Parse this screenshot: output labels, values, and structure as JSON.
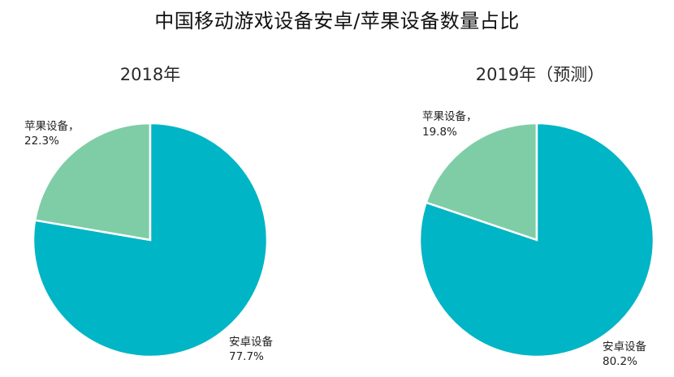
{
  "title": "中国移动游戏设备安卓/苹果设备数量占比",
  "colors": {
    "android": "#00B5C5",
    "apple": "#7FCDA6",
    "divider": "#ffffff"
  },
  "chart_data": [
    {
      "type": "pie",
      "title": "2018年",
      "slices": [
        {
          "name": "苹果设备",
          "value": 22.3,
          "label": "22.3%"
        },
        {
          "name": "安卓设备",
          "value": 77.7,
          "label": "77.7%"
        }
      ]
    },
    {
      "type": "pie",
      "title": "2019年（预测）",
      "slices": [
        {
          "name": "苹果设备",
          "value": 19.8,
          "label": "19.8%"
        },
        {
          "name": "安卓设备",
          "value": 80.2,
          "label": "80.2%"
        }
      ]
    }
  ]
}
